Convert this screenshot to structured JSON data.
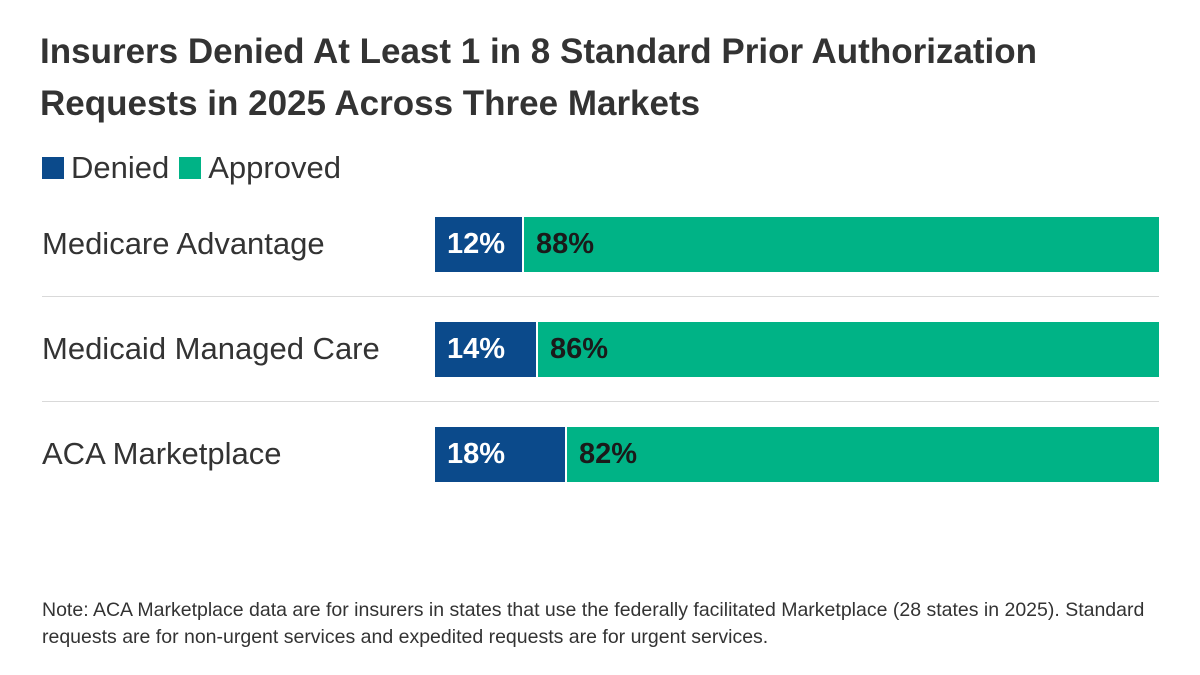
{
  "chart_data": {
    "type": "bar",
    "orientation": "horizontal",
    "stacked": true,
    "percent_stacked": true,
    "title": "Insurers Denied At Least 1 in 8 Standard Prior Authorization Requests in 2025 Across Three Markets",
    "categories": [
      "Medicare Advantage",
      "Medicaid Managed Care",
      "ACA Marketplace"
    ],
    "series": [
      {
        "name": "Denied",
        "color": "#0b4a8b",
        "values": [
          12,
          14,
          18
        ],
        "labels": [
          "12%",
          "14%",
          "18%"
        ]
      },
      {
        "name": "Approved",
        "color": "#00b386",
        "values": [
          88,
          86,
          82
        ],
        "labels": [
          "88%",
          "86%",
          "82%"
        ]
      }
    ],
    "xlim": [
      0,
      100
    ],
    "legend_position": "top-left",
    "grid": false,
    "note": "Note: ACA Marketplace data are for insurers in states that use the federally facilitated Marketplace (28 states in 2025). Standard requests are for non-urgent services and expedited requests are for urgent services."
  }
}
